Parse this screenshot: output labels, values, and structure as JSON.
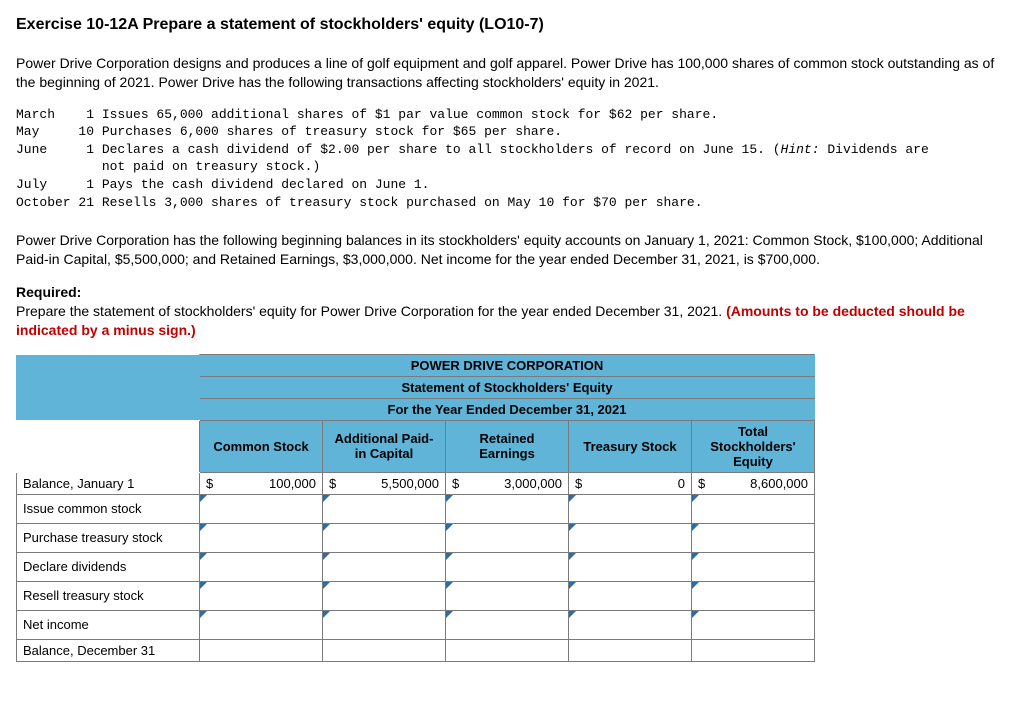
{
  "heading": "Exercise 10-12A Prepare a statement of stockholders' equity (LO10-7)",
  "intro": "Power Drive Corporation designs and produces a line of golf equipment and golf apparel. Power Drive has 100,000 shares of common stock outstanding as of the beginning of 2021. Power Drive has the following transactions affecting stockholders' equity in 2021.",
  "trans": {
    "l1a": "March    1 Issues 65,000 additional shares of $1 par value common stock for $62 per share.",
    "l2a": "May     10 Purchases 6,000 shares of treasury stock for $65 per share.",
    "l3a": "June     1 Declares a cash dividend of $2.00 per share to all stockholders of record on June 15. (",
    "l3hint": "Hint:",
    "l3b": " Dividends are",
    "l3c": "           not paid on treasury stock.)",
    "l4a": "July     1 Pays the cash dividend declared on June 1.",
    "l5a": "October 21 Resells 3,000 shares of treasury stock purchased on May 10 for $70 per share."
  },
  "balances": "Power Drive Corporation has the following beginning balances in its stockholders' equity accounts on January 1, 2021: Common Stock, $100,000; Additional Paid-in Capital, $5,500,000; and Retained Earnings, $3,000,000. Net income for the year ended December 31, 2021, is $700,000.",
  "required_label": "Required:",
  "required_text": "Prepare the statement of stockholders' equity for Power Drive Corporation for the year ended December 31, 2021. ",
  "required_red": "(Amounts to be deducted should be indicated by a minus sign.)",
  "table": {
    "title1": "POWER DRIVE CORPORATION",
    "title2": "Statement of Stockholders' Equity",
    "title3": "For the Year Ended December 31, 2021",
    "cols": {
      "c1": "Common Stock",
      "c2": "Additional Paid-in Capital",
      "c3": "Retained Earnings",
      "c4": "Treasury Stock",
      "c5": "Total Stockholders' Equity"
    },
    "rows": {
      "r1": "Balance, January 1",
      "r2": "Issue common stock",
      "r3": "Purchase treasury stock",
      "r4": "Declare dividends",
      "r5": "Resell treasury stock",
      "r6": "Net income",
      "r7": "Balance, December 31"
    },
    "vals": {
      "cs": "100,000",
      "apic": "5,500,000",
      "re": "3,000,000",
      "ts": "0",
      "tot": "8,600,000",
      "d": "$"
    }
  }
}
